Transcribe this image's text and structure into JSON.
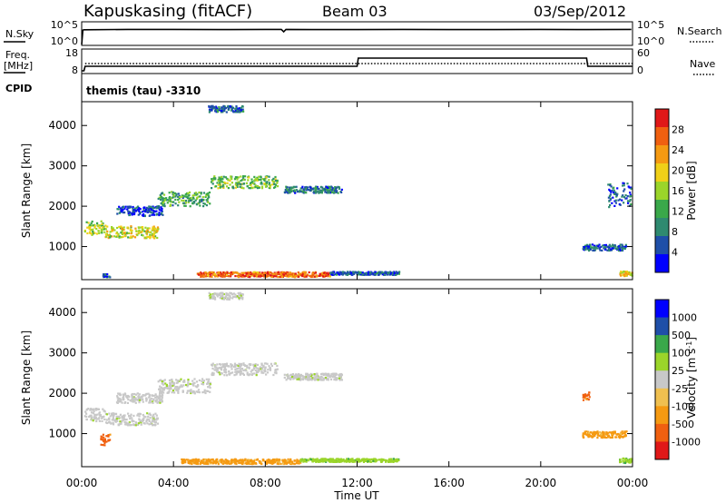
{
  "header": {
    "station": "Kapuskasing (fitACF)",
    "beam": "Beam 03",
    "date": "03/Sep/2012"
  },
  "colors": {
    "power": [
      "#0000ff",
      "#1f4fa8",
      "#2f8a70",
      "#3aa84a",
      "#9bd52a",
      "#f0d018",
      "#f59a12",
      "#f06010",
      "#e01818"
    ],
    "velocity": [
      "#e01818",
      "#f06010",
      "#f59a12",
      "#f0c050",
      "#c8c8c8",
      "#9bd52a",
      "#3aa84a",
      "#1f4fa8",
      "#0000ff"
    ]
  },
  "chart_data": [
    {
      "type": "line",
      "panel": "noise",
      "left_label": "N.Sky",
      "right_label": "N.Search",
      "left_ticks": [
        "10^5",
        "10^0"
      ],
      "right_ticks": [
        "10^5",
        "10^0"
      ],
      "left_ylim": [
        0,
        5
      ],
      "x": [
        0,
        0.05,
        0.1,
        2,
        4,
        6,
        8,
        8.7,
        8.8,
        8.9,
        10,
        12,
        14,
        16,
        18,
        20,
        22,
        23.95
      ],
      "series": [
        {
          "values": [
            0,
            4.4,
            4.5,
            4.6,
            4.6,
            4.55,
            4.6,
            4.6,
            3.9,
            4.6,
            4.55,
            4.55,
            4.6,
            4.55,
            4.55,
            4.6,
            4.55,
            4.6
          ]
        }
      ]
    },
    {
      "type": "line",
      "panel": "frequency",
      "left_label": "Freq.",
      "left_unit": "[MHz]",
      "right_label": "Nave",
      "left_ticks": [
        18,
        8
      ],
      "right_ticks": [
        60,
        0
      ],
      "left_ylim": [
        8,
        18
      ],
      "right_ylim": [
        0,
        60
      ],
      "series": [
        {
          "x": [
            0,
            0.1,
            0.15,
            12,
            12.05,
            22,
            22.05,
            24
          ],
          "values": [
            8,
            8,
            10.5,
            10.5,
            15,
            15,
            10.5,
            10.5
          ]
        },
        {
          "x": [
            0.15,
            24
          ],
          "values": [
            24,
            24
          ]
        }
      ]
    },
    {
      "type": "scatter",
      "panel": "power",
      "cpid_label": "CPID",
      "cpid_text": "themis (tau)  -3310",
      "ylabel": "Slant Range [km]",
      "ylim": [
        180,
        4590
      ],
      "xlim": [
        0,
        24
      ],
      "yticks": [
        4000,
        3000,
        2000,
        1000
      ],
      "colorbar_label": "Power [dB]",
      "colorbar_ticks": [
        28,
        24,
        20,
        16,
        12,
        8,
        4
      ],
      "colorbar_range": [
        0,
        32
      ],
      "clusters": [
        {
          "x0": 0.1,
          "x1": 1.0,
          "y": 1480,
          "spread": 170,
          "value": 16
        },
        {
          "x0": 1.0,
          "x1": 3.3,
          "y": 1380,
          "spread": 150,
          "value": 18
        },
        {
          "x0": 3.3,
          "x1": 5.6,
          "y": 2200,
          "spread": 180,
          "value": 12
        },
        {
          "x0": 5.6,
          "x1": 8.5,
          "y": 2620,
          "spread": 150,
          "value": 14
        },
        {
          "x0": 8.8,
          "x1": 11.3,
          "y": 2430,
          "spread": 80,
          "value": 8
        },
        {
          "x0": 1.5,
          "x1": 3.5,
          "y": 1900,
          "spread": 120,
          "value": 4
        },
        {
          "x0": 5.0,
          "x1": 10.8,
          "y": 330,
          "spread": 60,
          "value": 26
        },
        {
          "x0": 10.8,
          "x1": 13.8,
          "y": 360,
          "spread": 40,
          "value": 6
        },
        {
          "x0": 5.5,
          "x1": 7.0,
          "y": 4430,
          "spread": 80,
          "value": 6
        },
        {
          "x0": 21.8,
          "x1": 23.7,
          "y": 1000,
          "spread": 80,
          "value": 6
        },
        {
          "x0": 22.9,
          "x1": 23.9,
          "y": 2300,
          "spread": 300,
          "value": 6
        },
        {
          "x0": 0.9,
          "x1": 1.2,
          "y": 300,
          "spread": 40,
          "value": 6
        },
        {
          "x0": 23.4,
          "x1": 23.95,
          "y": 350,
          "spread": 60,
          "value": 20
        }
      ]
    },
    {
      "type": "scatter",
      "panel": "velocity",
      "ylabel": "Slant Range [km]",
      "xlabel": "Time UT",
      "ylim": [
        180,
        4590
      ],
      "xlim": [
        0,
        24
      ],
      "yticks": [
        4000,
        3000,
        2000,
        1000
      ],
      "xticks": [
        "00:00",
        "04:00",
        "08:00",
        "12:00",
        "16:00",
        "20:00",
        "00:00"
      ],
      "colorbar_label": "Velocity [m s",
      "colorbar_unit_sup": "-1",
      "colorbar_ticks": [
        "1000",
        "500",
        "100",
        "25",
        "-25",
        "-100",
        "-500",
        "-1000"
      ],
      "clusters": [
        {
          "x0": 0.1,
          "x1": 1.0,
          "y": 1480,
          "spread": 170,
          "value": "25"
        },
        {
          "x0": 1.0,
          "x1": 3.3,
          "y": 1380,
          "spread": 150,
          "value": "25"
        },
        {
          "x0": 3.3,
          "x1": 5.6,
          "y": 2200,
          "spread": 180,
          "value": "25"
        },
        {
          "x0": 5.6,
          "x1": 8.5,
          "y": 2620,
          "spread": 150,
          "value": "25"
        },
        {
          "x0": 8.8,
          "x1": 11.3,
          "y": 2430,
          "spread": 80,
          "value": "25"
        },
        {
          "x0": 1.5,
          "x1": 3.5,
          "y": 1900,
          "spread": 120,
          "value": "25"
        },
        {
          "x0": 5.5,
          "x1": 7.0,
          "y": 4430,
          "spread": 80,
          "value": "25"
        },
        {
          "x0": 0.8,
          "x1": 1.2,
          "y": 880,
          "spread": 150,
          "value": "-500"
        },
        {
          "x0": 4.3,
          "x1": 9.5,
          "y": 330,
          "spread": 60,
          "value": "-100"
        },
        {
          "x0": 9.5,
          "x1": 13.8,
          "y": 360,
          "spread": 40,
          "value": "100"
        },
        {
          "x0": 21.8,
          "x1": 23.7,
          "y": 1000,
          "spread": 80,
          "value": "-100"
        },
        {
          "x0": 21.8,
          "x1": 22.1,
          "y": 1950,
          "spread": 100,
          "value": "-500"
        },
        {
          "x0": 23.4,
          "x1": 23.95,
          "y": 350,
          "spread": 60,
          "value": "100"
        }
      ]
    }
  ]
}
